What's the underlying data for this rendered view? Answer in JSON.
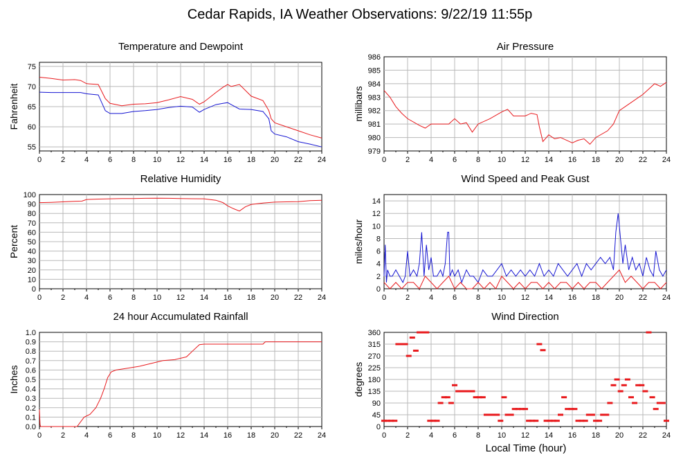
{
  "page_title": "Cedar Rapids, IA Weather Observations: 9/22/19 11:55p",
  "x_axis_label": "Local Time (hour)",
  "colors": {
    "red": "#e8191c",
    "blue": "#1414d2",
    "grid": "#b8b8b8"
  },
  "chart_data": [
    {
      "id": "temp",
      "type": "line",
      "title": "Temperature and Dewpoint",
      "ylabel": "Fahrenheit",
      "xlim": [
        0,
        24
      ],
      "ylim": [
        54,
        76
      ],
      "yticks": [
        55,
        60,
        65,
        70,
        75
      ],
      "xticks": [
        0,
        2,
        4,
        6,
        8,
        10,
        12,
        14,
        16,
        18,
        20,
        22,
        24
      ],
      "series": [
        {
          "color": "red",
          "x": [
            0,
            1,
            2,
            3,
            3.5,
            4,
            5,
            5.6,
            6,
            7,
            8,
            9,
            10,
            11,
            12,
            13,
            13.6,
            14,
            15,
            15.6,
            16,
            16.3,
            17,
            18,
            19,
            19.5,
            19.7,
            20,
            21,
            22,
            23,
            24
          ],
          "y": [
            72.3,
            72,
            71.6,
            71.7,
            71.5,
            70.7,
            70.5,
            67,
            65.8,
            65.2,
            65.6,
            65.7,
            66,
            66.7,
            67.5,
            66.8,
            65.6,
            66.2,
            68.5,
            69.8,
            70.5,
            70,
            70.5,
            67.6,
            66.5,
            64,
            62,
            61,
            60,
            59,
            58,
            57.2
          ]
        },
        {
          "color": "blue",
          "x": [
            0,
            1,
            2,
            3,
            3.5,
            4,
            5,
            5.6,
            6,
            7,
            8,
            9,
            10,
            11,
            12,
            13,
            13.6,
            14,
            15,
            15.6,
            16,
            16.3,
            17,
            18,
            19,
            19.5,
            19.7,
            20,
            21,
            22,
            23,
            24
          ],
          "y": [
            68.6,
            68.5,
            68.5,
            68.5,
            68.5,
            68.2,
            67.9,
            64,
            63.3,
            63.3,
            63.8,
            64,
            64.3,
            64.8,
            65.1,
            64.9,
            63.6,
            64.3,
            65.5,
            65.8,
            66,
            65.5,
            64.4,
            64.3,
            63.8,
            62,
            59,
            58.2,
            57.5,
            56.3,
            55.7,
            55
          ]
        }
      ]
    },
    {
      "id": "press",
      "type": "line",
      "title": "Air Pressure",
      "ylabel": "millibars",
      "xlim": [
        0,
        24
      ],
      "ylim": [
        979,
        986
      ],
      "yticks": [
        979,
        980,
        981,
        982,
        983,
        984,
        985,
        986
      ],
      "xticks": [
        0,
        2,
        4,
        6,
        8,
        10,
        12,
        14,
        16,
        18,
        20,
        22,
        24
      ],
      "series": [
        {
          "color": "red",
          "x": [
            0,
            0.5,
            1,
            1.5,
            2,
            3,
            3.5,
            4,
            5,
            5.5,
            6,
            6.5,
            7,
            7.5,
            8,
            9,
            10,
            10.5,
            11,
            12,
            12.5,
            13,
            13.2,
            13.5,
            14,
            14.5,
            15,
            16,
            16.5,
            17,
            17.5,
            18,
            19,
            19.5,
            20,
            20.5,
            21,
            22,
            22.5,
            23,
            23.5,
            24
          ],
          "y": [
            983.5,
            983,
            982.3,
            981.8,
            981.4,
            980.9,
            980.7,
            981,
            981,
            981,
            981.4,
            981,
            981.1,
            980.4,
            981,
            981.4,
            981.9,
            982.1,
            981.6,
            981.6,
            981.8,
            981.7,
            980.8,
            979.7,
            980.2,
            979.9,
            980,
            979.6,
            979.8,
            979.9,
            979.5,
            980,
            980.5,
            981,
            982,
            982.3,
            982.6,
            983.2,
            983.6,
            984,
            983.8,
            984.1
          ]
        }
      ]
    },
    {
      "id": "rh",
      "type": "line",
      "title": "Relative Humidity",
      "ylabel": "Percent",
      "xlim": [
        0,
        24
      ],
      "ylim": [
        0,
        100
      ],
      "yticks": [
        0,
        10,
        20,
        30,
        40,
        50,
        60,
        70,
        80,
        90,
        100
      ],
      "xticks": [
        0,
        2,
        4,
        6,
        8,
        10,
        12,
        14,
        16,
        18,
        20,
        22,
        24
      ],
      "series": [
        {
          "color": "red",
          "x": [
            0,
            1,
            2,
            3,
            3.6,
            4,
            5,
            6,
            7,
            8,
            9,
            10,
            11,
            12,
            13,
            14,
            15,
            15.6,
            16,
            16.5,
            17,
            17.5,
            18,
            19,
            20,
            21,
            22,
            23,
            24
          ],
          "y": [
            91.5,
            91.8,
            92.3,
            92.8,
            93,
            94.8,
            95.2,
            95.5,
            95.7,
            95.7,
            96,
            96.2,
            96,
            95.8,
            95.6,
            95.5,
            94,
            91.5,
            88,
            85,
            82.5,
            87,
            89.5,
            91,
            92,
            92.3,
            92.5,
            93.5,
            94
          ]
        }
      ]
    },
    {
      "id": "wind",
      "type": "line",
      "title": "Wind Speed and Peak Gust",
      "ylabel": "miles/hour",
      "xlim": [
        0,
        24
      ],
      "ylim": [
        0,
        15
      ],
      "yticks": [
        0,
        2,
        4,
        6,
        8,
        10,
        12,
        14
      ],
      "xticks": [
        0,
        2,
        4,
        6,
        8,
        10,
        12,
        14,
        16,
        18,
        20,
        22,
        24
      ],
      "series": [
        {
          "name": "",
          "color": "blue",
          "x": [
            0,
            0.1,
            0.2,
            0.3,
            0.5,
            0.7,
            1,
            1.3,
            1.6,
            1.8,
            2,
            2.2,
            2.5,
            2.8,
            3,
            3.2,
            3.4,
            3.6,
            3.8,
            4,
            4.2,
            4.5,
            4.8,
            5,
            5.2,
            5.4,
            5.5,
            5.6,
            5.8,
            6,
            6.3,
            6.6,
            7,
            7.3,
            7.6,
            8,
            8.4,
            8.8,
            9.2,
            9.6,
            10,
            10.4,
            10.8,
            11.2,
            11.6,
            12,
            12.4,
            12.8,
            13.2,
            13.6,
            14,
            14.4,
            14.8,
            15.2,
            15.6,
            16,
            16.4,
            16.8,
            17.2,
            17.6,
            18,
            18.4,
            18.8,
            19.2,
            19.5,
            19.7,
            19.9,
            20.1,
            20.3,
            20.5,
            20.8,
            21.1,
            21.4,
            21.7,
            22,
            22.3,
            22.6,
            22.9,
            23.1,
            23.4,
            23.7,
            24
          ],
          "y": [
            2,
            7,
            1,
            3,
            2,
            2,
            3,
            2,
            1,
            2,
            6,
            2,
            3,
            2,
            4,
            9,
            2,
            7,
            3,
            5,
            2,
            2,
            3,
            2,
            4,
            9,
            9,
            2,
            3,
            2,
            3,
            1,
            3,
            2,
            2,
            1,
            3,
            2,
            2,
            3,
            4,
            2,
            3,
            2,
            3,
            2,
            3,
            2,
            4,
            2,
            3,
            2,
            4,
            3,
            2,
            3,
            4,
            2,
            4,
            3,
            4,
            5,
            4,
            5,
            3,
            9,
            12,
            8,
            4,
            7,
            3,
            5,
            3,
            4,
            2,
            5,
            3,
            2,
            6,
            3,
            2,
            3
          ]
        },
        {
          "name": "",
          "color": "red",
          "x": [
            0,
            0.5,
            1,
            1.5,
            2,
            2.5,
            3,
            3.5,
            4,
            4.5,
            5,
            5.5,
            6,
            6.5,
            7,
            7.5,
            8,
            8.5,
            9,
            9.5,
            10,
            10.5,
            11,
            11.5,
            12,
            12.5,
            13,
            13.5,
            14,
            14.5,
            15,
            15.5,
            16,
            16.5,
            17,
            17.5,
            18,
            18.5,
            19,
            19.5,
            20,
            20.5,
            21,
            21.5,
            22,
            22.5,
            23,
            23.5,
            24
          ],
          "y": [
            1,
            0,
            1,
            0,
            1,
            1,
            0,
            2,
            1,
            0,
            1,
            2,
            0,
            1,
            0,
            0,
            1,
            0,
            1,
            0,
            2,
            1,
            0,
            1,
            0,
            1,
            1,
            0,
            1,
            0,
            1,
            1,
            0,
            1,
            0,
            1,
            1,
            0,
            1,
            2,
            3,
            1,
            2,
            1,
            0,
            1,
            1,
            0,
            1
          ]
        }
      ]
    },
    {
      "id": "rain",
      "type": "line",
      "title": "24 hour Accumulated Rainfall",
      "ylabel": "Inches",
      "xlim": [
        0,
        24
      ],
      "ylim": [
        0,
        1
      ],
      "yticks": [
        0.0,
        0.1,
        0.2,
        0.3,
        0.4,
        0.5,
        0.6,
        0.7,
        0.8,
        0.9,
        1.0
      ],
      "ytick_labels": [
        "0.0",
        "0.1",
        "0.2",
        "0.3",
        "0.4",
        "0.5",
        "0.6",
        "0.7",
        "0.8",
        "0.9",
        "1.0"
      ],
      "xticks": [
        0,
        2,
        4,
        6,
        8,
        10,
        12,
        14,
        16,
        18,
        20,
        22,
        24
      ],
      "series": [
        {
          "color": "red",
          "x": [
            0,
            0.05,
            0.1,
            3.2,
            3.8,
            4.3,
            4.8,
            5.2,
            5.5,
            5.8,
            6.1,
            6.5,
            7.5,
            8.5,
            9.5,
            10.5,
            11.5,
            12.5,
            13,
            13.6,
            14,
            15,
            16,
            17,
            18,
            19,
            19.2,
            20,
            21,
            22,
            23,
            24
          ],
          "y": [
            0.18,
            0.02,
            0,
            0,
            0.1,
            0.13,
            0.2,
            0.3,
            0.4,
            0.52,
            0.58,
            0.6,
            0.62,
            0.64,
            0.67,
            0.7,
            0.71,
            0.74,
            0.8,
            0.87,
            0.875,
            0.875,
            0.875,
            0.875,
            0.875,
            0.875,
            0.9,
            0.9,
            0.9,
            0.9,
            0.9,
            0.9
          ]
        }
      ]
    },
    {
      "id": "wdir",
      "type": "scatter",
      "title": "Wind Direction",
      "ylabel": "degrees",
      "xlim": [
        0,
        24
      ],
      "ylim": [
        0,
        360
      ],
      "yticks": [
        0,
        45,
        90,
        135,
        180,
        225,
        270,
        315,
        360
      ],
      "xticks": [
        0,
        2,
        4,
        6,
        8,
        10,
        12,
        14,
        16,
        18,
        20,
        22,
        24
      ],
      "series": [
        {
          "color": "red",
          "x": [
            0,
            0.3,
            0.6,
            0.9,
            1.2,
            1.5,
            1.8,
            2.1,
            2.4,
            2.7,
            3.0,
            3.3,
            3.6,
            3.9,
            4.2,
            4.5,
            4.8,
            5.1,
            5.4,
            5.7,
            6.0,
            6.3,
            6.6,
            6.9,
            7.2,
            7.5,
            7.8,
            8.1,
            8.4,
            8.7,
            9.0,
            9.3,
            9.6,
            9.9,
            10.2,
            10.5,
            10.8,
            11.1,
            11.4,
            11.7,
            12.0,
            12.3,
            12.6,
            12.9,
            13.2,
            13.5,
            13.8,
            14.1,
            14.4,
            14.7,
            15.0,
            15.3,
            15.6,
            15.9,
            16.2,
            16.5,
            16.8,
            17.1,
            17.4,
            17.7,
            18.0,
            18.3,
            18.6,
            18.9,
            19.2,
            19.5,
            19.8,
            20.1,
            20.4,
            20.7,
            21.0,
            21.3,
            21.6,
            21.9,
            22.2,
            22.5,
            22.8,
            23.1,
            23.4,
            23.7,
            24
          ],
          "y": [
            22,
            22,
            22,
            22,
            315,
            315,
            315,
            270,
            340,
            290,
            360,
            360,
            360,
            22,
            22,
            22,
            90,
            112,
            112,
            90,
            158,
            135,
            135,
            135,
            135,
            135,
            112,
            112,
            112,
            45,
            45,
            45,
            45,
            22,
            112,
            45,
            45,
            67,
            67,
            67,
            67,
            22,
            22,
            22,
            315,
            292,
            22,
            22,
            22,
            22,
            45,
            112,
            67,
            67,
            67,
            22,
            22,
            22,
            45,
            45,
            22,
            22,
            45,
            45,
            90,
            158,
            180,
            135,
            158,
            180,
            112,
            90,
            158,
            158,
            135,
            360,
            112,
            67,
            90,
            90,
            22
          ]
        }
      ]
    }
  ]
}
